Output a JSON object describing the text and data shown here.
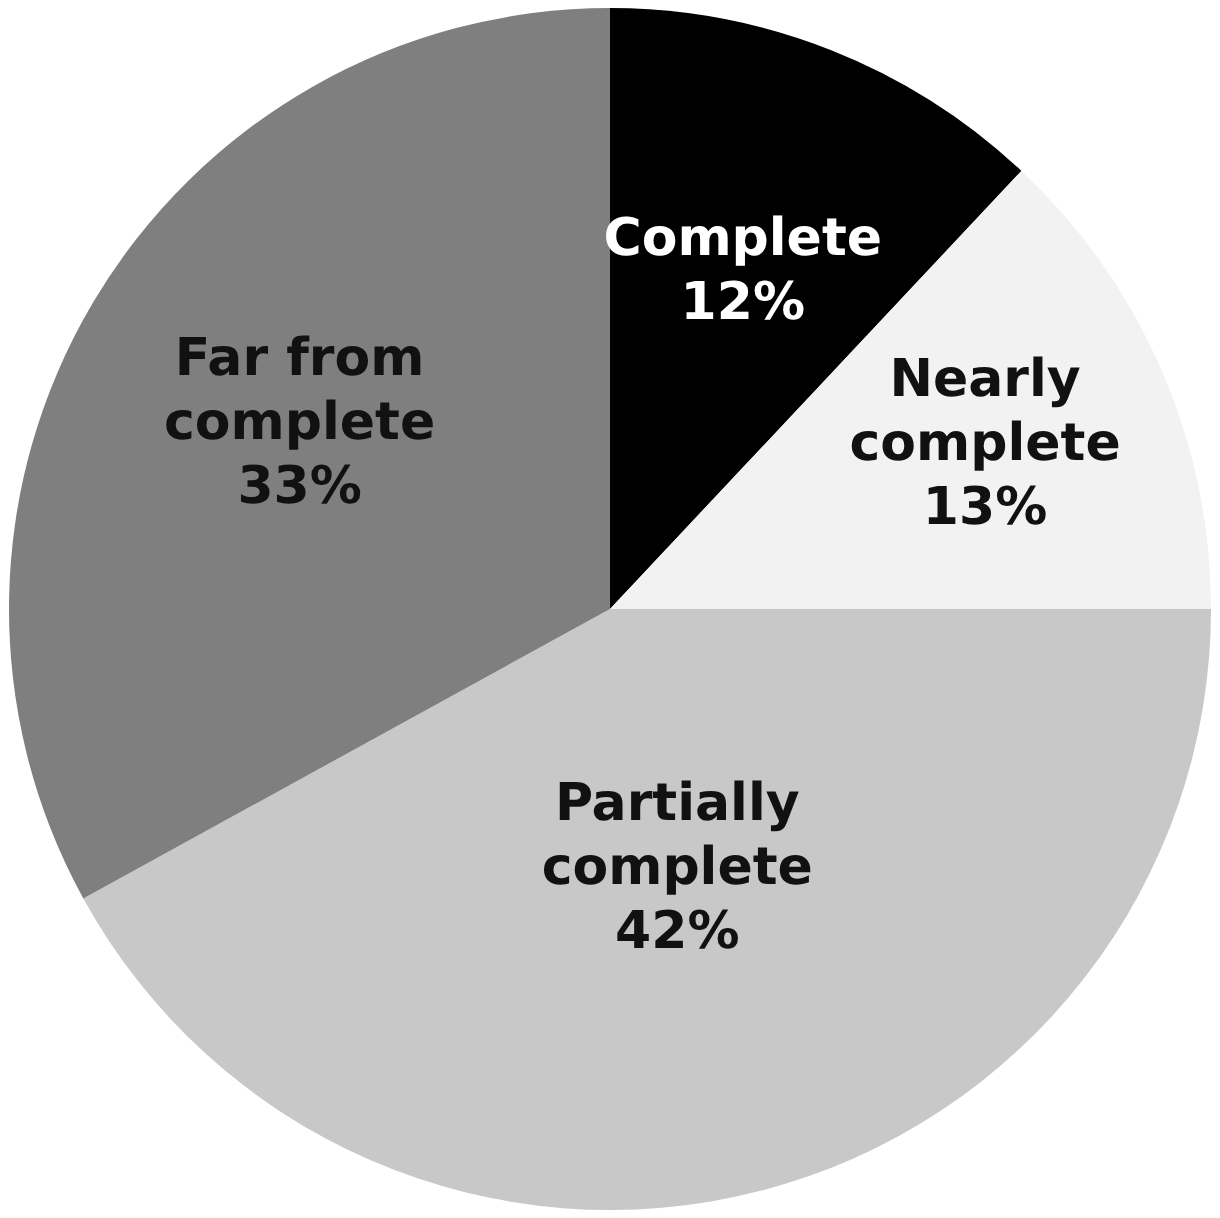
{
  "chart_data": {
    "type": "pie",
    "categories": [
      "Complete",
      "Nearly complete",
      "Partially complete",
      "Far from complete"
    ],
    "values": [
      12,
      13,
      42,
      33
    ],
    "colors": [
      "#000000",
      "#f2f2f2",
      "#c8c8c8",
      "#7f7f7f"
    ],
    "value_labels": [
      "12%",
      "13%",
      "42%",
      "33%"
    ],
    "legend": false
  }
}
